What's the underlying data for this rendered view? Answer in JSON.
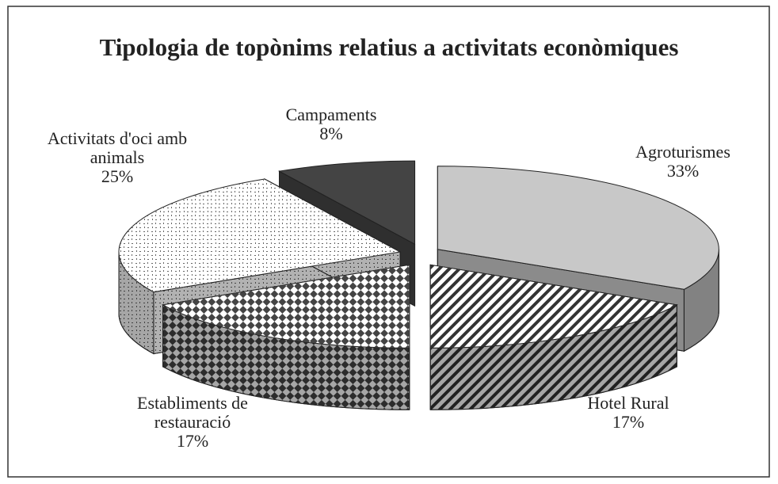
{
  "chart_data": {
    "type": "pie3d",
    "title": "Tipologia de topònims relatius a activitats econòmiques",
    "categories": [
      "Agroturismes",
      "Hotel Rural",
      "Establiments de restauració",
      "Activitats d'oci amb animals",
      "Campaments"
    ],
    "values": [
      33,
      17,
      17,
      25,
      8
    ],
    "value_labels": [
      "33%",
      "17%",
      "17%",
      "25%",
      "8%"
    ],
    "colors": [
      "#c8c8c8",
      "#ffffff",
      "#ffffff",
      "#ffffff",
      "#444444"
    ]
  }
}
